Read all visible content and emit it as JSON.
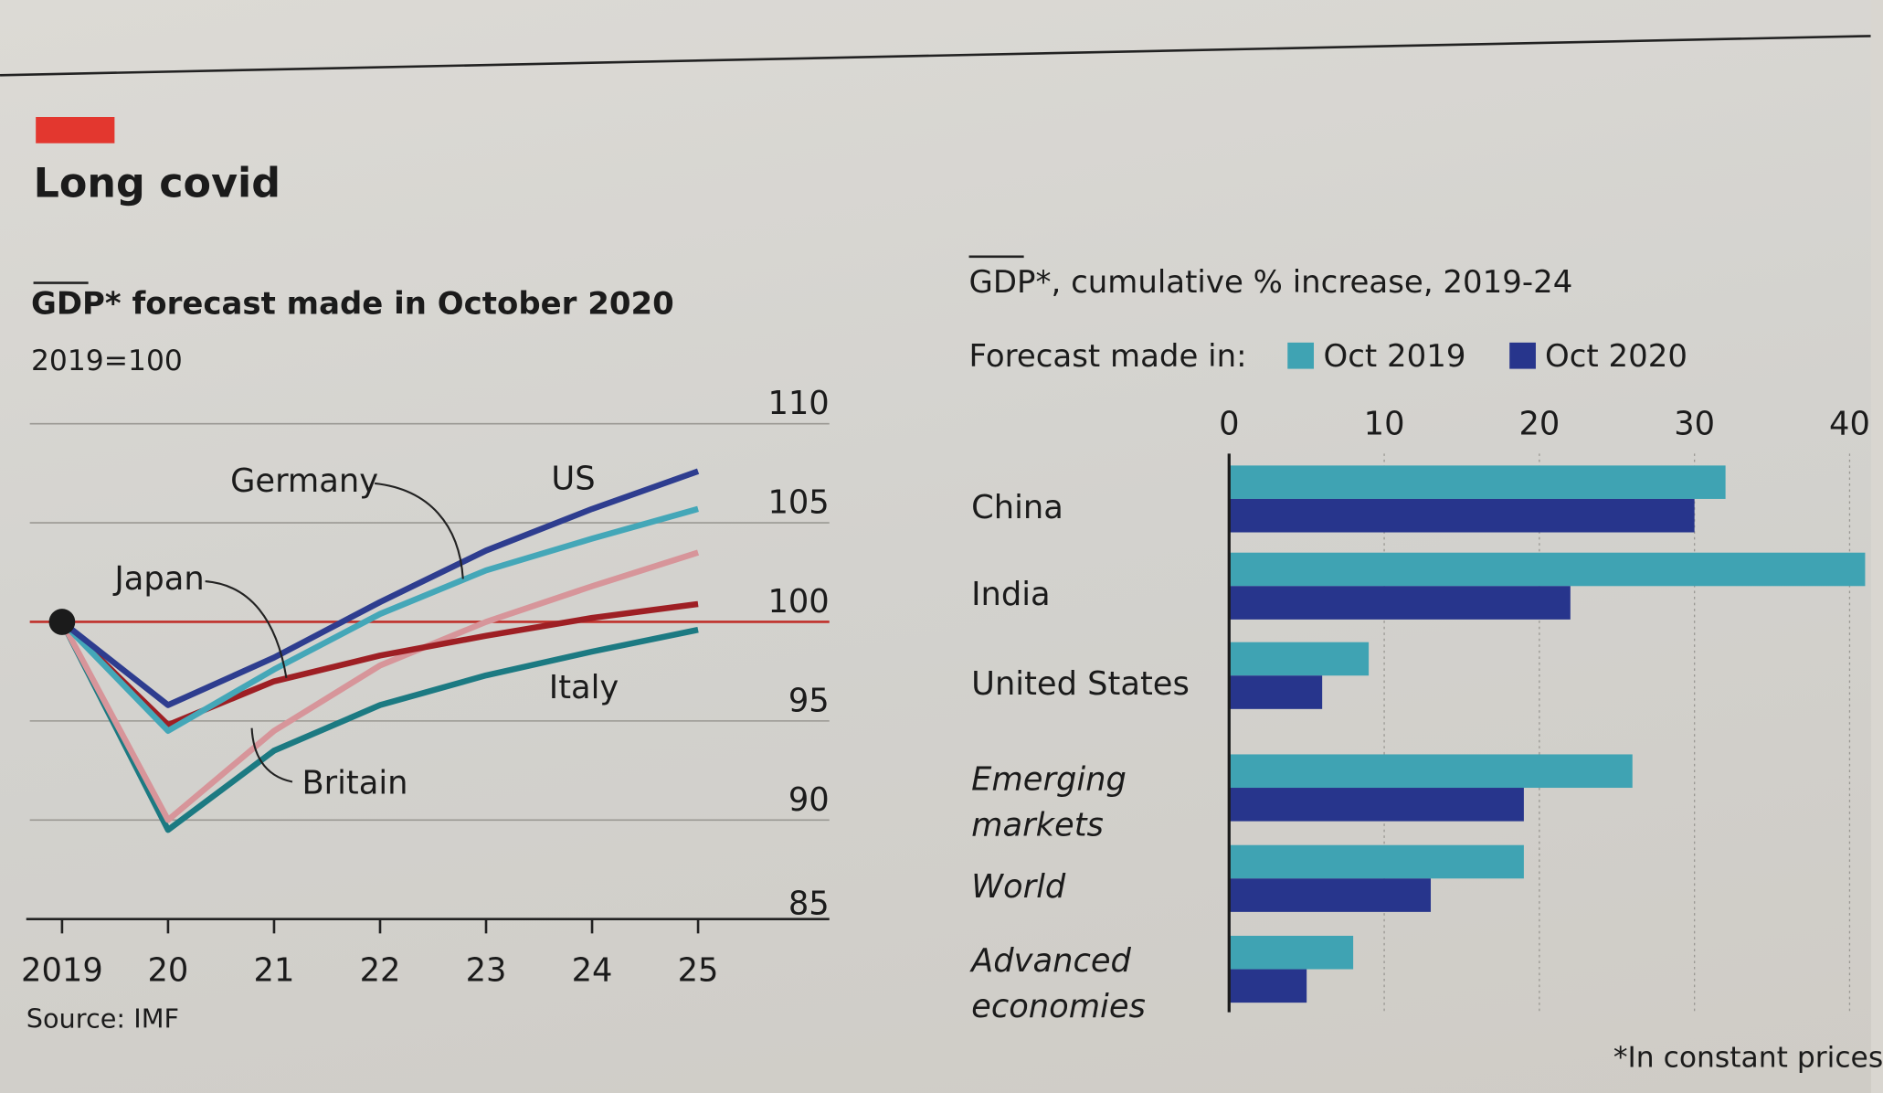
{
  "header": {
    "title": "Long covid",
    "footnote": "*In constant prices",
    "source": "Source: IMF"
  },
  "chart_data": [
    {
      "type": "line",
      "title": "GDP* forecast made in October 2020",
      "subtitle": "2019=100",
      "x": [
        2019,
        2020,
        2021,
        2022,
        2023,
        2024,
        2025
      ],
      "x_tick_labels": [
        "2019",
        "20",
        "21",
        "22",
        "23",
        "24",
        "25"
      ],
      "ylim": [
        85,
        110
      ],
      "y_ticks": [
        85,
        90,
        95,
        100,
        105,
        110
      ],
      "grid": true,
      "series": [
        {
          "name": "US",
          "color": "#2e3d8f",
          "values": [
            100,
            95.8,
            98.2,
            101.0,
            103.6,
            105.7,
            107.6
          ]
        },
        {
          "name": "Germany",
          "color": "#44a7b8",
          "values": [
            100,
            94.5,
            97.6,
            100.4,
            102.6,
            104.2,
            105.7
          ]
        },
        {
          "name": "Japan",
          "color": "#9e1f24",
          "values": [
            100,
            94.8,
            97.0,
            98.3,
            99.3,
            100.2,
            100.9
          ]
        },
        {
          "name": "Britain",
          "color": "#d7959a",
          "values": [
            100,
            90.0,
            94.5,
            97.8,
            100.0,
            101.8,
            103.5
          ]
        },
        {
          "name": "Italy",
          "color": "#1c7a82",
          "values": [
            100,
            89.5,
            93.5,
            95.8,
            97.3,
            98.5,
            99.6
          ]
        }
      ]
    },
    {
      "type": "bar",
      "orientation": "horizontal",
      "title": "GDP*, cumulative % increase, 2019-24",
      "legend_label": "Forecast made in:",
      "legend_placement": "top",
      "xlim": [
        0,
        40
      ],
      "x_ticks": [
        0,
        10,
        20,
        30,
        40
      ],
      "grid": true,
      "categories": [
        "China",
        "India",
        "United States",
        "Emerging markets",
        "World",
        "Advanced economies"
      ],
      "italic_categories": [
        "Emerging markets",
        "World",
        "Advanced economies"
      ],
      "series": [
        {
          "name": "Oct 2019",
          "color": "#3fa3b3",
          "values": [
            32,
            42,
            9,
            26,
            19,
            8
          ]
        },
        {
          "name": "Oct 2020",
          "color": "#27358c",
          "values": [
            30,
            22,
            6,
            19,
            13,
            5
          ]
        }
      ]
    }
  ]
}
